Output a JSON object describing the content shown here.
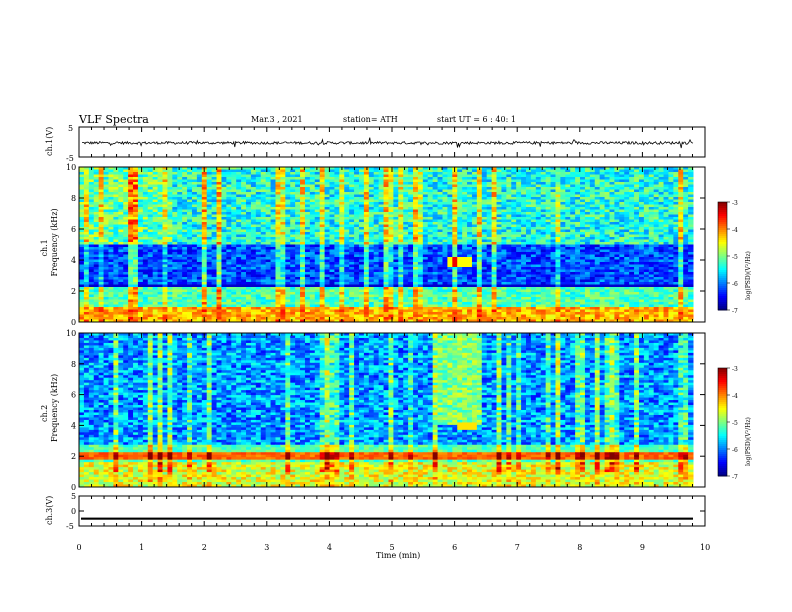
{
  "header": {
    "title": "VLF Spectra",
    "date": "Mar.3 , 2021",
    "station": "station= ATH",
    "start_ut": "start UT = 6 : 40: 1"
  },
  "chart_data": [
    {
      "type": "line",
      "panel": "ch1-voltage",
      "ylabel": "ch.1(V)",
      "ylim": [
        -5,
        5
      ],
      "yticks": [
        "5",
        "-5"
      ],
      "series": [
        {
          "values_summary": "noisy signal around -0.3 V, amplitude ~0.5 V"
        }
      ]
    },
    {
      "type": "heatmap",
      "panel": "ch1-spectrogram",
      "ylabel": "ch.1 Frequency (kHz)",
      "ylim": [
        0,
        10
      ],
      "yticks": [
        "0",
        "2",
        "4",
        "6",
        "8",
        "10"
      ],
      "colorbar": {
        "label": "log(PSD)(V²/Hz)",
        "range": [
          -7,
          -3
        ],
        "ticks": [
          "-3",
          "-4",
          "-5",
          "-6",
          "-7"
        ]
      },
      "features": [
        {
          "freq_khz": [
            0,
            1
          ],
          "level": -3.5,
          "note": "strong low-frequency bands"
        },
        {
          "freq_khz": [
            2.2,
            2.5
          ],
          "level": -6.6,
          "note": "dark band"
        },
        {
          "freq_khz": [
            2.5,
            5
          ],
          "level": -6.3,
          "note": "low background"
        },
        {
          "freq_khz": [
            5,
            10
          ],
          "level": -5.3,
          "note": "moderate background"
        },
        {
          "time_min": 6.1,
          "freq_khz": [
            3.6,
            4.2
          ],
          "level": -4.5,
          "note": "patch"
        }
      ]
    },
    {
      "type": "heatmap",
      "panel": "ch2-spectrogram",
      "ylabel": "ch.2 Frequency (kHz)",
      "ylim": [
        0,
        10
      ],
      "yticks": [
        "0",
        "2",
        "4",
        "6",
        "8",
        "10"
      ],
      "colorbar": {
        "label": "log(PSD)(V²/Hz)",
        "range": [
          -7,
          -3
        ],
        "ticks": [
          "-3",
          "-4",
          "-5",
          "-6",
          "-7"
        ]
      },
      "features": [
        {
          "freq_khz": [
            1.8,
            2.2
          ],
          "level": -3.7,
          "note": "strong band"
        },
        {
          "freq_khz": [
            0,
            1.6
          ],
          "level": -4.6,
          "note": "bands"
        },
        {
          "freq_khz": [
            2.8,
            10
          ],
          "level": -5.9,
          "note": "background"
        },
        {
          "time_min": [
            5.7,
            6.4
          ],
          "freq_khz": [
            4,
            10
          ],
          "level": -5.0,
          "note": "enhanced"
        }
      ]
    },
    {
      "type": "line",
      "panel": "ch3-voltage",
      "ylabel": "ch.3(V)",
      "ylim": [
        -5,
        5
      ],
      "yticks": [
        "5",
        "0",
        "-5"
      ],
      "series": [
        {
          "values_summary": "flat thick trace at about -2.5 V"
        }
      ]
    },
    {
      "type": "axis",
      "panel": "time-axis",
      "xlabel": "Time (min)",
      "xlim": [
        0,
        10
      ],
      "xticks": [
        "0",
        "1",
        "2",
        "3",
        "4",
        "5",
        "6",
        "7",
        "8",
        "9",
        "10"
      ]
    }
  ]
}
